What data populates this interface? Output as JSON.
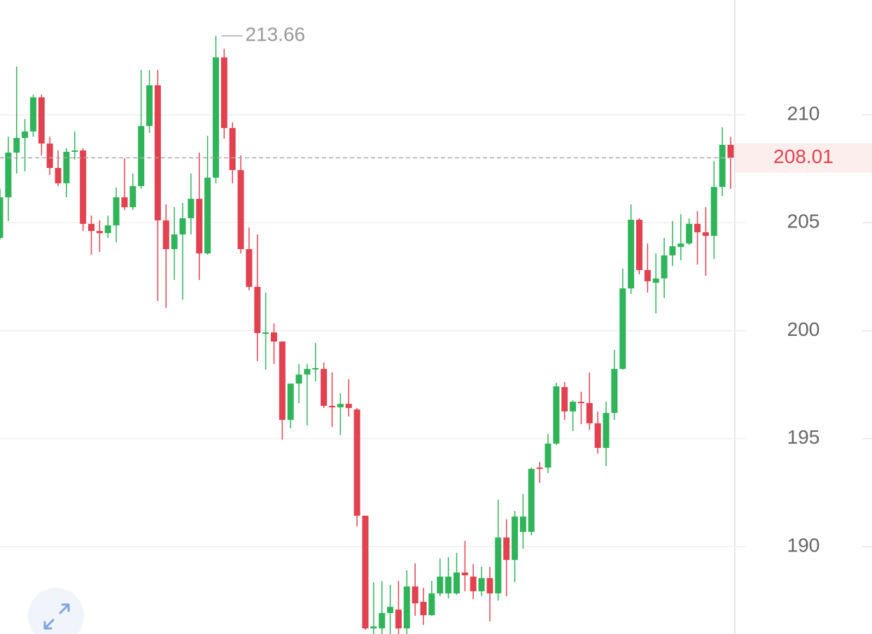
{
  "chart_data": {
    "type": "candlestick",
    "open": [
      204.3,
      206.18,
      208.25,
      208.93,
      209.23,
      210.81,
      208.67,
      207.54,
      206.83,
      208.29,
      208.35,
      204.95,
      204.62,
      204.52,
      204.88,
      206.18,
      205.72,
      206.7,
      209.48,
      211.37,
      205.11,
      203.78,
      204.46,
      205.21,
      206.11,
      203.58,
      207.09,
      212.66,
      209.39,
      207.44,
      203.78,
      202.03,
      199.86,
      199.92,
      199.5,
      195.87,
      197.55,
      197.97,
      198.23,
      198.23,
      196.52,
      196.45,
      196.61,
      196.35,
      191.43,
      186.21,
      186.21,
      186.92,
      187.08,
      186.21,
      188.15,
      187.44,
      186.82,
      187.83,
      187.83,
      187.83,
      188.8,
      188.61,
      187.93,
      188.54,
      187.83,
      190.42,
      189.38,
      190.68,
      190.68,
      193.66,
      193.66,
      194.77,
      197.39,
      196.26,
      196.71,
      196.65,
      195.71,
      194.57,
      196.19,
      198.23,
      201.96,
      205.14,
      202.81,
      202.22,
      202.42,
      203.49,
      203.88,
      204.04,
      204.95,
      204.56,
      204.39,
      206.66,
      208.61
    ],
    "high": [
      206.57,
      208.99,
      212.24,
      209.81,
      210.94,
      210.94,
      208.99,
      208.35,
      208.45,
      209.23,
      208.45,
      205.33,
      205.11,
      205.33,
      206.63,
      207.99,
      207.28,
      212.08,
      212.08,
      212.08,
      205.85,
      205.72,
      205.92,
      207.28,
      208.25,
      209.03,
      213.66,
      213.05,
      209.65,
      208.12,
      204.78,
      204.46,
      201.77,
      200.34,
      199.5,
      197.55,
      198.46,
      198.46,
      199.43,
      198.53,
      198.07,
      197.1,
      197.75,
      196.42,
      191.43,
      188.35,
      188.41,
      188.22,
      188.41,
      188.9,
      189.22,
      188.09,
      188.41,
      189.45,
      189.51,
      189.71,
      190.26,
      189.19,
      189.06,
      189.06,
      192.17,
      191.26,
      191.65,
      192.43,
      193.66,
      193.92,
      195.22,
      197.59,
      197.62,
      196.78,
      197.17,
      198.07,
      196.26,
      196.71,
      199.11,
      202.87,
      205.85,
      205.21,
      204.04,
      203.58,
      204.3,
      205.08,
      205.4,
      205.21,
      205.53,
      205.72,
      207.86,
      209.42,
      208.97
    ],
    "low": [
      204.23,
      205.08,
      207.28,
      207.38,
      208.99,
      208.12,
      207.22,
      206.7,
      206.18,
      207.93,
      204.62,
      203.52,
      203.65,
      204.3,
      204.1,
      205.59,
      205.59,
      206.57,
      209.16,
      201.38,
      201.06,
      202.35,
      201.44,
      204.46,
      202.35,
      203.52,
      206.83,
      208.9,
      206.83,
      203.58,
      201.87,
      198.59,
      198.2,
      198.46,
      194.96,
      195.48,
      196.65,
      195.61,
      197.65,
      196.42,
      195.54,
      195.16,
      196.03,
      190.94,
      186.14,
      185.95,
      185.95,
      185.95,
      185.95,
      185.95,
      186.79,
      186.37,
      186.79,
      187.7,
      187.6,
      187.76,
      187.93,
      187.57,
      187.7,
      186.53,
      187.5,
      187.7,
      188.35,
      189.9,
      190.52,
      192.95,
      193.4,
      194.7,
      195.87,
      195.35,
      195.67,
      195.41,
      194.31,
      193.73,
      195.87,
      198.2,
      201.7,
      202.61,
      201.77,
      200.8,
      201.51,
      203.0,
      203.26,
      203.97,
      203.07,
      202.55,
      203.32,
      206.24,
      206.57
    ],
    "close": [
      206.18,
      208.25,
      208.93,
      209.23,
      210.81,
      208.67,
      207.54,
      206.83,
      208.29,
      208.35,
      204.95,
      204.62,
      204.52,
      204.88,
      206.18,
      205.72,
      206.7,
      209.48,
      211.37,
      205.11,
      203.78,
      204.46,
      205.21,
      206.11,
      203.58,
      207.09,
      212.66,
      209.39,
      207.44,
      203.78,
      202.03,
      199.89,
      199.92,
      199.5,
      195.87,
      197.55,
      197.97,
      198.23,
      198.27,
      196.52,
      196.45,
      196.61,
      196.42,
      191.43,
      186.21,
      186.3,
      186.92,
      187.21,
      186.21,
      188.15,
      187.37,
      186.82,
      187.83,
      188.61,
      188.61,
      188.8,
      188.67,
      187.93,
      188.54,
      187.83,
      190.42,
      189.38,
      191.39,
      191.39,
      193.6,
      193.6,
      194.77,
      197.42,
      196.26,
      196.71,
      196.65,
      195.71,
      194.57,
      196.19,
      198.23,
      201.96,
      205.14,
      202.81,
      202.29,
      202.42,
      203.49,
      203.91,
      204.04,
      204.95,
      204.56,
      204.39,
      206.66,
      208.61,
      208.01
    ],
    "up_color": "#2fb45a",
    "down_color": "#e2414f",
    "ylim": [
      185.95,
      215.32
    ],
    "yticks": [
      190,
      195,
      200,
      205,
      210
    ],
    "grid": true
  }
}
